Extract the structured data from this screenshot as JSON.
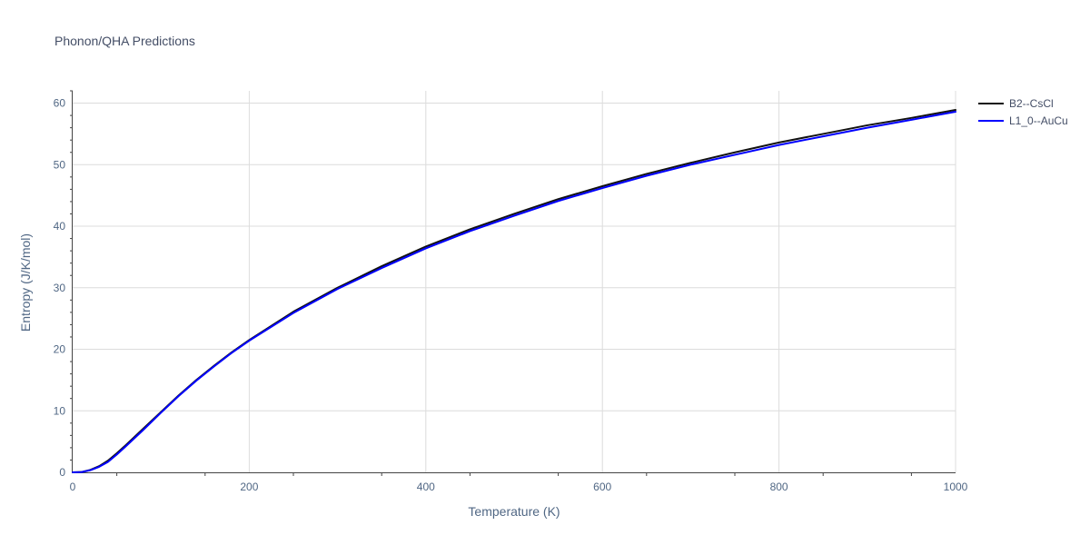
{
  "chart_data": {
    "type": "line",
    "title": "Phonon/QHA Predictions",
    "xlabel": "Temperature (K)",
    "ylabel": "Entropy (J/K/mol)",
    "xlim": [
      0,
      1000
    ],
    "ylim": [
      0,
      62
    ],
    "x_ticks": [
      0,
      200,
      400,
      600,
      800,
      1000
    ],
    "y_ticks": [
      0,
      10,
      20,
      30,
      40,
      50,
      60
    ],
    "grid": true,
    "legend_position": "top-right",
    "series": [
      {
        "name": "B2--CsCl",
        "color": "#111111",
        "x": [
          0,
          10,
          20,
          30,
          40,
          50,
          60,
          80,
          100,
          120,
          140,
          160,
          180,
          200,
          250,
          300,
          350,
          400,
          450,
          500,
          550,
          600,
          650,
          700,
          750,
          800,
          850,
          900,
          950,
          1000
        ],
        "y": [
          0,
          0.05,
          0.4,
          1.0,
          1.9,
          3.1,
          4.4,
          7.1,
          9.8,
          12.5,
          15.0,
          17.3,
          19.5,
          21.5,
          26.1,
          30.0,
          33.5,
          36.7,
          39.5,
          42.0,
          44.4,
          46.5,
          48.5,
          50.3,
          52.0,
          53.6,
          55.0,
          56.4,
          57.6,
          58.9
        ]
      },
      {
        "name": "L1_0--AuCu",
        "color": "#0000ff",
        "x": [
          0,
          10,
          20,
          30,
          40,
          50,
          60,
          80,
          100,
          120,
          140,
          160,
          180,
          200,
          250,
          300,
          350,
          400,
          450,
          500,
          550,
          600,
          650,
          700,
          750,
          800,
          850,
          900,
          950,
          1000
        ],
        "y": [
          0,
          0.04,
          0.35,
          0.9,
          1.7,
          2.9,
          4.2,
          6.9,
          9.7,
          12.4,
          14.9,
          17.2,
          19.4,
          21.4,
          25.9,
          29.8,
          33.2,
          36.4,
          39.2,
          41.7,
          44.1,
          46.2,
          48.2,
          50.0,
          51.6,
          53.2,
          54.6,
          56.0,
          57.3,
          58.6
        ]
      }
    ]
  }
}
